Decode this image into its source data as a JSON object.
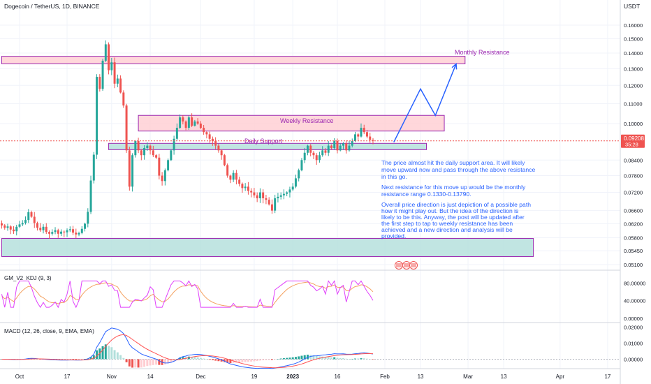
{
  "header": {
    "symbol_title": "Dogecoin / TetherUS, 1D, BINANCE",
    "currency": "USDT"
  },
  "price_badge": {
    "price": "0.09208",
    "countdown": "35:28",
    "color": "#ef5350"
  },
  "colors": {
    "up": "#26a69a",
    "down": "#ef5350",
    "zone_pink_fill": "#ffcdd2",
    "zone_teal_fill": "#b2dfdb",
    "zone_border": "#9c27b0",
    "annotation_text": "#2962ff",
    "path_arrow": "#2962ff",
    "kdj_k": "#f4a261",
    "kdj_d": "#e040fb",
    "macd_line": "#2962ff",
    "signal_line": "#ff5252"
  },
  "annotations": {
    "monthly_resistance": "Monthly Resistance",
    "weekly_resistance": "Weekly Resistance",
    "daily_support": "Daily Support",
    "note_1": [
      "The price almost hit the daily support area. It will likely",
      "move upward now and pass through the above resistance",
      "in this go."
    ],
    "note_2": [
      "Next resistance for this move up would be the monthly",
      "resistance range 0.1330-0.13790."
    ],
    "note_3": [
      "Overall price direction is just depiction of a possible path",
      "how it might play out. But the idea of the direction is",
      "likely to be this. Anyway, the post will be updated after",
      "the first step to tap to weekly resistance has been",
      "achieved and a new direction and analysis will be",
      "provided."
    ]
  },
  "indicators": {
    "kdj_label": "GM_V2_KDJ (9, 3)",
    "macd_label": "MACD (12, 26, close, 9, EMA, EMA)"
  },
  "chart_data": [
    {
      "type": "candlestick",
      "title": "Dogecoin / TetherUS, 1D, BINANCE",
      "y_scale": "log",
      "ylim": [
        0.0495,
        0.1705
      ],
      "y_ticks": [
        "0.16000",
        "0.15000",
        "0.14000",
        "0.13000",
        "0.12000",
        "0.11000",
        "0.10000",
        "0.08400",
        "0.07800",
        "0.07200",
        "0.06600",
        "0.06200",
        "0.05800",
        "0.05450",
        "0.05100"
      ],
      "x_ticks": [
        "Oct",
        "17",
        "Nov",
        "14",
        "Dec",
        "19",
        "2023",
        "16",
        "Feb",
        "13",
        "Mar",
        "13",
        "Apr",
        "17"
      ],
      "x_tick_dates": [
        "2022-10-01",
        "2022-10-17",
        "2022-11-01",
        "2022-11-14",
        "2022-12-01",
        "2022-12-19",
        "2023-01-01",
        "2023-01-16",
        "2023-02-01",
        "2023-02-13",
        "2023-03-01",
        "2023-03-13",
        "2023-04-01",
        "2023-04-17"
      ],
      "first_date": "2022-09-25",
      "close_series": [
        0.0615,
        0.0608,
        0.0612,
        0.0603,
        0.0598,
        0.0611,
        0.0618,
        0.0622,
        0.0631,
        0.0655,
        0.0641,
        0.0622,
        0.0608,
        0.0601,
        0.0611,
        0.0596,
        0.0591,
        0.0596,
        0.0601,
        0.0591,
        0.0597,
        0.0595,
        0.0601,
        0.0604,
        0.0594,
        0.0589,
        0.0593,
        0.0605,
        0.062,
        0.0656,
        0.0762,
        0.0862,
        0.125,
        0.118,
        0.135,
        0.146,
        0.129,
        0.134,
        0.121,
        0.124,
        0.116,
        0.109,
        0.088,
        0.074,
        0.086,
        0.092,
        0.088,
        0.086,
        0.089,
        0.09,
        0.088,
        0.086,
        0.085,
        0.078,
        0.076,
        0.08,
        0.084,
        0.088,
        0.093,
        0.098,
        0.103,
        0.101,
        0.098,
        0.103,
        0.099,
        0.101,
        0.1,
        0.098,
        0.096,
        0.095,
        0.093,
        0.092,
        0.09,
        0.088,
        0.086,
        0.082,
        0.078,
        0.0765,
        0.079,
        0.0765,
        0.075,
        0.0735,
        0.074,
        0.0725,
        0.072,
        0.071,
        0.07,
        0.072,
        0.07,
        0.0695,
        0.068,
        0.066,
        0.07,
        0.0705,
        0.071,
        0.0715,
        0.072,
        0.073,
        0.074,
        0.077,
        0.08,
        0.084,
        0.087,
        0.09,
        0.087,
        0.086,
        0.084,
        0.086,
        0.088,
        0.087,
        0.09,
        0.089,
        0.092,
        0.088,
        0.09,
        0.091,
        0.088,
        0.09,
        0.092,
        0.095,
        0.094,
        0.098,
        0.096,
        0.094,
        0.0925,
        0.0921
      ],
      "support_resistance_zones": [
        {
          "name": "Monthly Resistance",
          "from": 0.133,
          "to": 0.1379,
          "x_range": [
            "2022-09-25",
            "2023-02-28"
          ]
        },
        {
          "name": "Weekly Resistance",
          "from": 0.0965,
          "to": 0.104,
          "x_range": [
            "2022-11-10",
            "2023-02-21"
          ]
        },
        {
          "name": "Daily Support",
          "from": 0.0883,
          "to": 0.091,
          "x_range": [
            "2022-10-31",
            "2023-02-15"
          ]
        },
        {
          "name": "",
          "from": 0.053,
          "to": 0.0578,
          "x_range": [
            "2022-09-25",
            "2023-03-23"
          ]
        }
      ],
      "projected_path": [
        {
          "date": "2023-02-04",
          "price": 0.0915
        },
        {
          "date": "2023-02-13",
          "price": 0.118
        },
        {
          "date": "2023-02-18",
          "price": 0.104
        },
        {
          "date": "2023-02-25",
          "price": 0.133
        }
      ],
      "last_price": 0.09208
    },
    {
      "type": "line",
      "title": "GM_V2_KDJ (9, 3)",
      "ylim": [
        -5,
        100
      ],
      "y_ticks": [
        "80.00000",
        "40.00000",
        "0.00000"
      ],
      "series": [
        {
          "name": "K"
        },
        {
          "name": "D"
        }
      ]
    },
    {
      "type": "histogram+line",
      "title": "MACD (12, 26, close, 9, EMA, EMA)",
      "ylim": [
        -0.005,
        0.021
      ],
      "y_ticks": [
        "0.02000",
        "0.01000",
        "0.00000"
      ],
      "series": [
        {
          "name": "MACD"
        },
        {
          "name": "Signal"
        },
        {
          "name": "Histogram"
        }
      ]
    }
  ]
}
